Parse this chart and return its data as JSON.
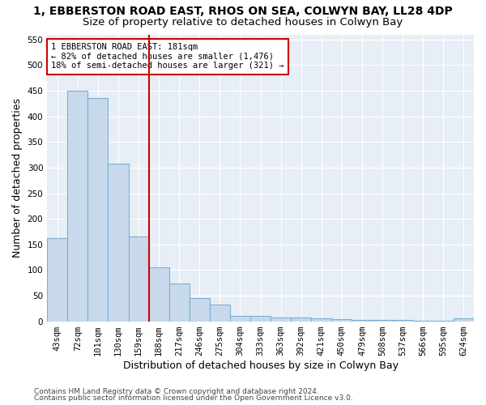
{
  "title_line1": "1, EBBERSTON ROAD EAST, RHOS ON SEA, COLWYN BAY, LL28 4DP",
  "title_line2": "Size of property relative to detached houses in Colwyn Bay",
  "xlabel": "Distribution of detached houses by size in Colwyn Bay",
  "ylabel": "Number of detached properties",
  "categories": [
    "43sqm",
    "72sqm",
    "101sqm",
    "130sqm",
    "159sqm",
    "188sqm",
    "217sqm",
    "246sqm",
    "275sqm",
    "304sqm",
    "333sqm",
    "363sqm",
    "392sqm",
    "421sqm",
    "450sqm",
    "479sqm",
    "508sqm",
    "537sqm",
    "566sqm",
    "595sqm",
    "624sqm"
  ],
  "values": [
    163,
    450,
    436,
    307,
    166,
    105,
    74,
    45,
    33,
    10,
    10,
    8,
    8,
    5,
    4,
    2,
    3,
    2,
    1,
    1,
    5
  ],
  "bar_color": "#c9d9ec",
  "bar_edge_color": "#7bafd4",
  "red_line_index": 5,
  "annotation_line1": "1 EBBERSTON ROAD EAST: 181sqm",
  "annotation_line2": "← 82% of detached houses are smaller (1,476)",
  "annotation_line3": "18% of semi-detached houses are larger (321) →",
  "annotation_box_facecolor": "#ffffff",
  "annotation_box_edgecolor": "#cc0000",
  "footer_line1": "Contains HM Land Registry data © Crown copyright and database right 2024.",
  "footer_line2": "Contains public sector information licensed under the Open Government Licence v3.0.",
  "ylim_max": 560,
  "yticks": [
    0,
    50,
    100,
    150,
    200,
    250,
    300,
    350,
    400,
    450,
    500,
    550
  ],
  "plot_bg_color": "#e8eef6",
  "fig_bg_color": "#ffffff",
  "grid_color": "#ffffff",
  "title1_fontsize": 10,
  "title2_fontsize": 9.5,
  "axis_label_fontsize": 9,
  "tick_fontsize": 7.5,
  "annotation_fontsize": 7.5,
  "footer_fontsize": 6.5
}
